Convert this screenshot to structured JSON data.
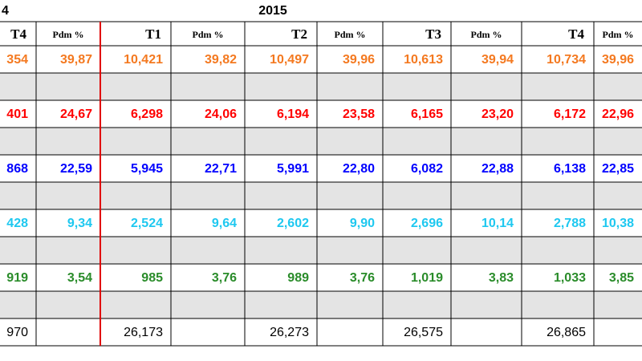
{
  "table": {
    "title_row": [
      "4",
      "2015"
    ],
    "header": [
      "T4",
      "Pdm %",
      "T1",
      "Pdm %",
      "T2",
      "Pdm %",
      "T3",
      "Pdm %",
      "T4",
      "Pdm %"
    ],
    "rows": [
      {
        "color": "#f47920",
        "cells": [
          "354",
          "39,87",
          "10,421",
          "39,82",
          "10,497",
          "39,96",
          "10,613",
          "39,94",
          "10,734",
          "39,96"
        ]
      },
      {
        "color": "#ff0000",
        "cells": [
          "401",
          "24,67",
          "6,298",
          "24,06",
          "6,194",
          "23,58",
          "6,165",
          "23,20",
          "6,172",
          "22,96"
        ]
      },
      {
        "color": "#0000ff",
        "cells": [
          "868",
          "22,59",
          "5,945",
          "22,71",
          "5,991",
          "22,80",
          "6,082",
          "22,88",
          "6,138",
          "22,85"
        ]
      },
      {
        "color": "#1ec8f0",
        "cells": [
          "428",
          "9,34",
          "2,524",
          "9,64",
          "2,602",
          "9,90",
          "2,696",
          "10,14",
          "2,788",
          "10,38"
        ]
      },
      {
        "color": "#2a8c2a",
        "cells": [
          "919",
          "3,54",
          "985",
          "3,76",
          "989",
          "3,76",
          "1,019",
          "3,83",
          "1,033",
          "3,85"
        ]
      }
    ],
    "total": [
      "970",
      "26,173",
      "26,273",
      "26,575",
      "26,865"
    ]
  }
}
